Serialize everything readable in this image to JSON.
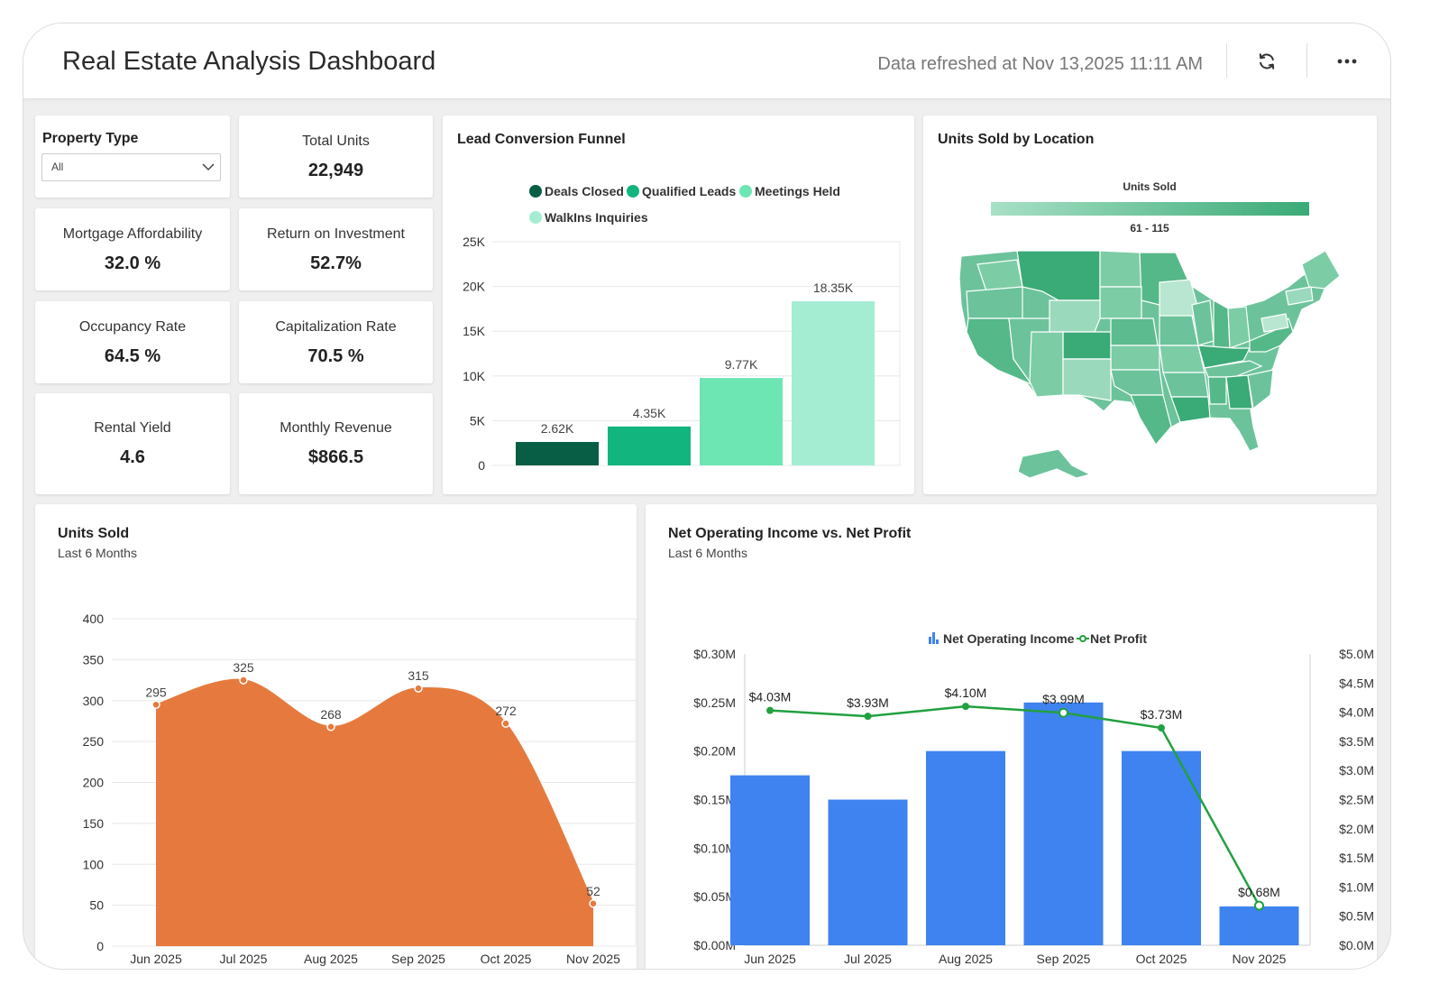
{
  "header": {
    "title": "Real Estate Analysis Dashboard",
    "refreshed": "Data refreshed at Nov 13,2025 11:11 AM"
  },
  "filter": {
    "label": "Property Type",
    "value": "All"
  },
  "kpis": {
    "total_units": {
      "label": "Total Units",
      "value": "22,949"
    },
    "mortgage": {
      "label": "Mortgage Affordability",
      "value": "32.0 %"
    },
    "roi": {
      "label": "Return on Investment",
      "value": "52.7%"
    },
    "occupancy": {
      "label": "Occupancy Rate",
      "value": "64.5 %"
    },
    "cap_rate": {
      "label": "Capitalization Rate",
      "value": "70.5 %"
    },
    "rental_yield": {
      "label": "Rental Yield",
      "value": "4.6"
    },
    "monthly_revenue": {
      "label": "Monthly Revenue",
      "value": "$866.5"
    }
  },
  "funnel": {
    "title": "Lead Conversion Funnel"
  },
  "map": {
    "title": "Units Sold by Location",
    "legend_title": "Units Sold",
    "legend_range": "61 - 115"
  },
  "units": {
    "title": "Units Sold",
    "subtitle": "Last 6 Months"
  },
  "noi": {
    "title": "Net Operating Income vs. Net Profit",
    "subtitle": "Last 6 Months"
  },
  "colors": {
    "accent_green": "#3cb07a",
    "orange": "#e67a3e",
    "blue": "#3e83f0",
    "net_profit_line": "#22a040"
  },
  "chart_data": [
    {
      "type": "bar",
      "categories": [
        "Deals Closed",
        "Qualified Leads",
        "Meetings Held",
        "WalkIns Inquiries"
      ],
      "values": [
        2620,
        4350,
        9770,
        18350
      ],
      "data_labels": [
        "2.62K",
        "4.35K",
        "9.77K",
        "18.35K"
      ],
      "colors": [
        "#075e45",
        "#12b57e",
        "#6de6b4",
        "#a4edd2"
      ],
      "ylim": [
        0,
        25000
      ],
      "yticks": [
        "0",
        "5K",
        "10K",
        "15K",
        "20K",
        "25K"
      ],
      "legend": "top"
    },
    {
      "type": "area",
      "categories": [
        "Jun 2025",
        "Jul 2025",
        "Aug 2025",
        "Sep 2025",
        "Oct 2025",
        "Nov 2025"
      ],
      "values": [
        295,
        325,
        268,
        315,
        272,
        52
      ],
      "ylim": [
        0,
        400
      ],
      "yticks": [
        "0",
        "50",
        "100",
        "150",
        "200",
        "250",
        "300",
        "350",
        "400"
      ]
    },
    {
      "type": "bar",
      "categories": [
        "Jun 2025",
        "Jul 2025",
        "Aug 2025",
        "Sep 2025",
        "Oct 2025",
        "Nov 2025"
      ],
      "series": [
        {
          "name": "Net Operating Income",
          "type": "bar",
          "axis": "left",
          "values": [
            0.175,
            0.15,
            0.2,
            0.25,
            0.2,
            0.04
          ]
        },
        {
          "name": "Net Profit",
          "type": "line",
          "axis": "right",
          "values": [
            4.03,
            3.93,
            4.1,
            3.99,
            3.73,
            0.68
          ],
          "labels": [
            "$4.03M",
            "$3.93M",
            "$4.10M",
            "$3.99M",
            "$3.73M",
            "$0.68M"
          ]
        }
      ],
      "ylim_left": [
        0,
        0.3
      ],
      "yticks_left": [
        "$0.00M",
        "$0.05M",
        "$0.10M",
        "$0.15M",
        "$0.20M",
        "$0.25M",
        "$0.30M"
      ],
      "ylim_right": [
        0,
        5
      ],
      "yticks_right": [
        "$0.0M",
        "$0.5M",
        "$1.0M",
        "$1.5M",
        "$2.0M",
        "$2.5M",
        "$3.0M",
        "$3.5M",
        "$4.0M",
        "$4.5M",
        "$5.0M"
      ],
      "legend": "top"
    }
  ]
}
